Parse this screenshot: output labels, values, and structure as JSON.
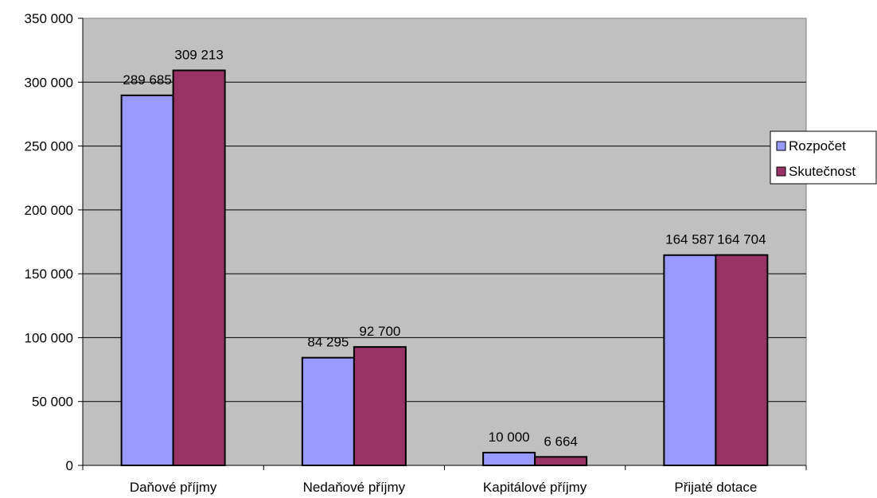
{
  "chart_data": {
    "type": "bar",
    "title": "",
    "xlabel": "",
    "ylabel": "",
    "categories": [
      "Daňové příjmy",
      "Nedaňové příjmy",
      "Kapitálové příjmy",
      "Přijaté dotace"
    ],
    "series": [
      {
        "name": "Rozpočet",
        "color": "#9999ff",
        "values": [
          289685,
          84295,
          10000,
          164587
        ],
        "labels": [
          "289 685",
          "84 295",
          "10 000",
          "164 587"
        ]
      },
      {
        "name": "Skutečnost",
        "color": "#993366",
        "values": [
          309213,
          92700,
          6664,
          164704
        ],
        "labels": [
          "309 213",
          "92 700",
          "6 664",
          "164 704"
        ]
      }
    ],
    "ylim": [
      0,
      350000
    ],
    "yticks": [
      0,
      50000,
      100000,
      150000,
      200000,
      250000,
      300000,
      350000
    ],
    "ytick_labels": [
      "0",
      "50 000",
      "100 000",
      "150 000",
      "200 000",
      "250 000",
      "300 000",
      "350 000"
    ],
    "plot_background": "#c0c0c0",
    "grid": true,
    "legend_position": "right"
  }
}
